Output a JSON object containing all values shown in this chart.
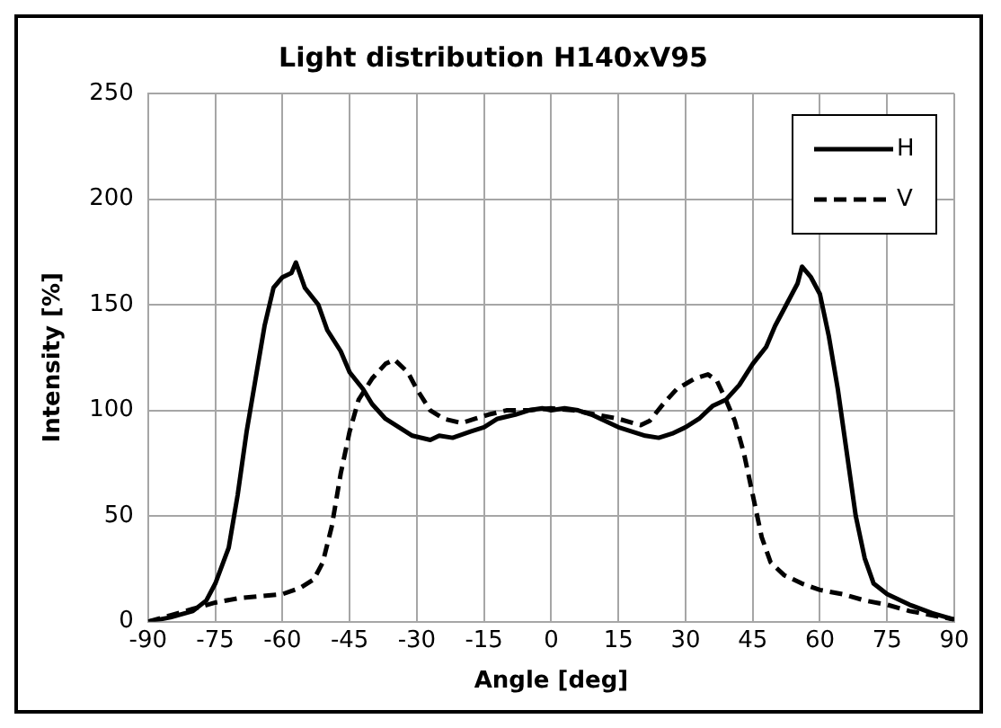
{
  "chart_data": {
    "type": "line",
    "title": "Light distribution H140xV95",
    "xlabel": "Angle [deg]",
    "ylabel": "Intensity [%]",
    "xlim": [
      -90,
      90
    ],
    "xticks": [
      -90,
      -75,
      -60,
      -45,
      -30,
      -15,
      0,
      15,
      30,
      45,
      60,
      75,
      90
    ],
    "ylim": [
      0,
      250
    ],
    "yticks": [
      0,
      50,
      100,
      150,
      200,
      250
    ],
    "grid": true,
    "legend": "top right",
    "marker": "none",
    "series": [
      {
        "name": "H",
        "color": "#000000",
        "line_style": "solid",
        "x": [
          -90,
          -85,
          -80,
          -77,
          -75,
          -72,
          -70,
          -68,
          -66,
          -64,
          -62,
          -60,
          -58,
          -57,
          -55,
          -52,
          -50,
          -47,
          -45,
          -42,
          -40,
          -37,
          -34,
          -31,
          -27,
          -25,
          -22,
          -18,
          -15,
          -12,
          -8,
          -5,
          -2,
          0,
          3,
          6,
          9,
          12,
          15,
          18,
          21,
          24,
          27,
          30,
          33,
          36,
          39,
          42,
          45,
          48,
          50,
          52,
          55,
          56,
          58,
          60,
          62,
          64,
          66,
          68,
          70,
          72,
          75,
          80,
          85,
          90
        ],
        "values": [
          0,
          2,
          5,
          10,
          18,
          35,
          60,
          90,
          115,
          140,
          158,
          163,
          165,
          170,
          158,
          150,
          138,
          128,
          118,
          110,
          103,
          96,
          92,
          88,
          86,
          88,
          87,
          90,
          92,
          96,
          98,
          100,
          101,
          100,
          101,
          100,
          98,
          95,
          92,
          90,
          88,
          87,
          89,
          92,
          96,
          102,
          105,
          112,
          122,
          130,
          140,
          148,
          160,
          168,
          163,
          155,
          135,
          110,
          80,
          50,
          30,
          18,
          13,
          8,
          4,
          1
        ]
      },
      {
        "name": "V",
        "color": "#000000",
        "line_style": "dashed",
        "x": [
          -90,
          -85,
          -80,
          -75,
          -70,
          -65,
          -60,
          -56,
          -53,
          -51,
          -49,
          -47,
          -45,
          -43,
          -40,
          -37,
          -35,
          -32,
          -30,
          -27,
          -24,
          -20,
          -17,
          -14,
          -10,
          -5,
          0,
          5,
          10,
          15,
          20,
          22,
          25,
          28,
          32,
          35,
          37,
          39,
          41,
          43,
          45,
          47,
          49,
          52,
          56,
          60,
          65,
          70,
          75,
          80,
          85,
          90
        ],
        "values": [
          0,
          3,
          6,
          9,
          11,
          12,
          13,
          16,
          20,
          28,
          45,
          70,
          90,
          105,
          115,
          122,
          124,
          118,
          110,
          100,
          96,
          94,
          96,
          98,
          100,
          100,
          101,
          100,
          98,
          96,
          93,
          95,
          103,
          110,
          115,
          117,
          114,
          105,
          95,
          80,
          60,
          40,
          28,
          22,
          18,
          15,
          13,
          10,
          8,
          5,
          3,
          1
        ]
      }
    ]
  }
}
